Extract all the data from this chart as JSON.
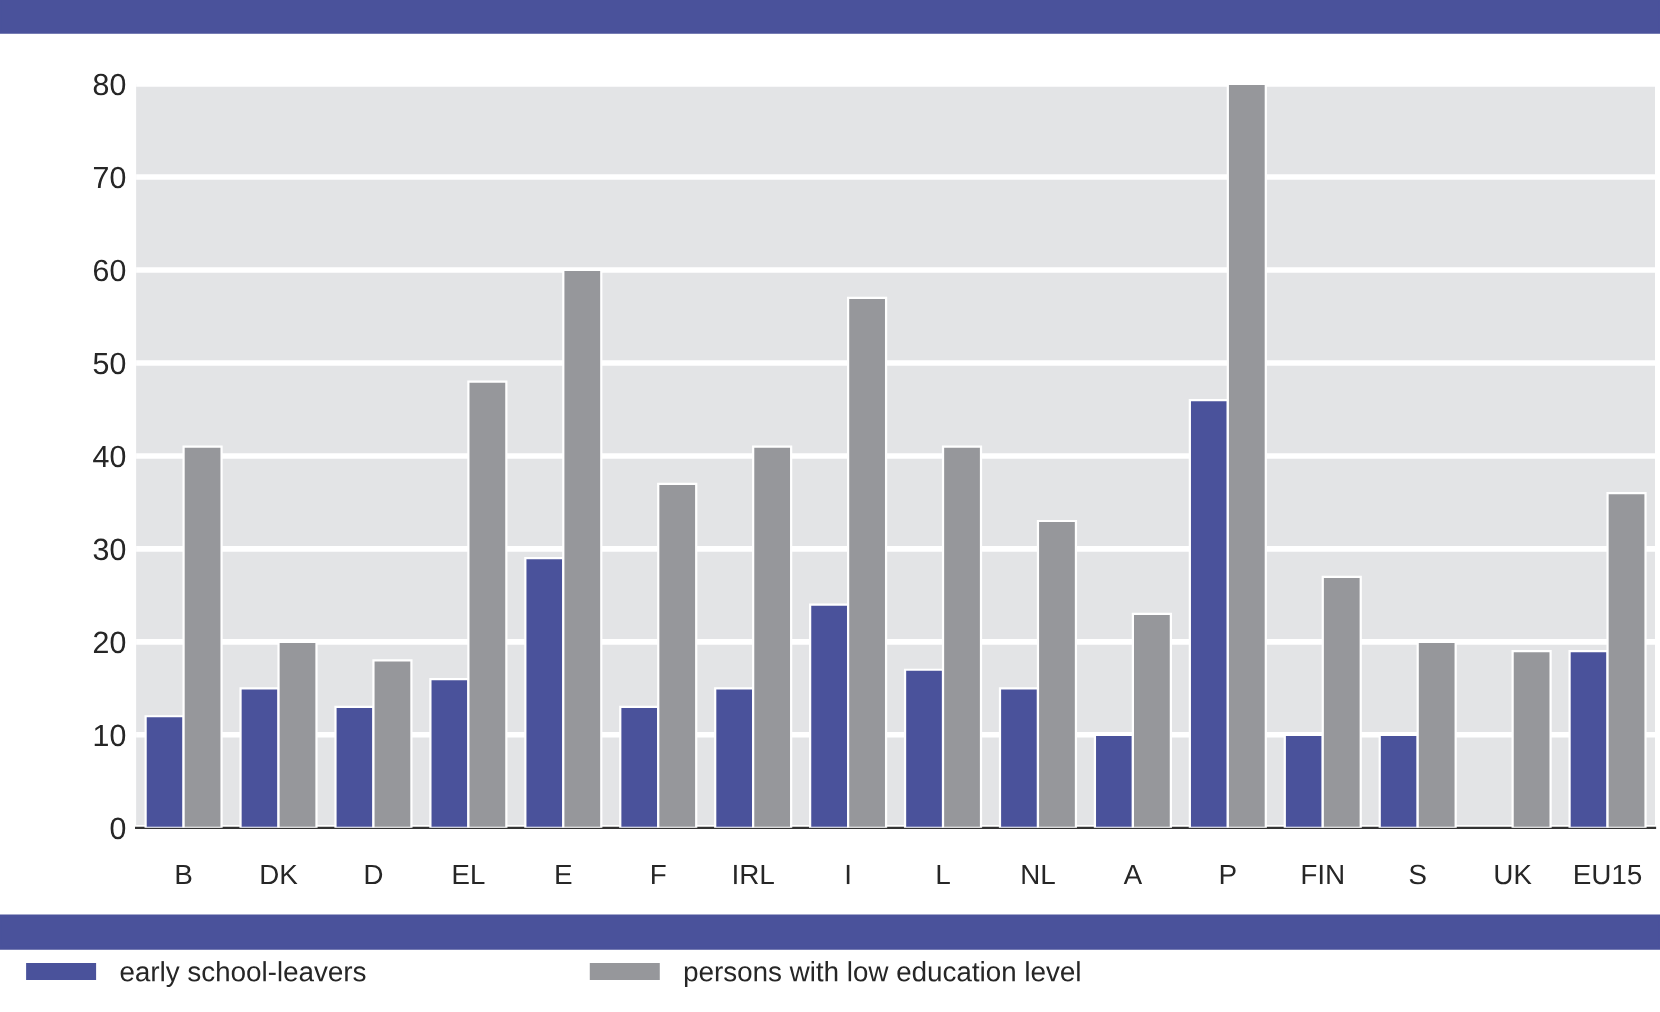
{
  "chart_data": {
    "type": "bar",
    "categories": [
      "B",
      "DK",
      "D",
      "EL",
      "E",
      "F",
      "IRL",
      "I",
      "L",
      "NL",
      "A",
      "P",
      "FIN",
      "S",
      "UK",
      "EU15"
    ],
    "series": [
      {
        "name": "early school-leavers",
        "color": "#4a529b",
        "values": [
          12,
          15,
          13,
          16,
          29,
          13,
          15,
          24,
          17,
          15,
          10,
          46,
          10,
          10,
          null,
          19
        ]
      },
      {
        "name": "persons with low education level",
        "color": "#96979b",
        "values": [
          41,
          20,
          18,
          48,
          60,
          37,
          41,
          57,
          41,
          33,
          23,
          80,
          27,
          20,
          19,
          36
        ]
      }
    ],
    "ylim": [
      0,
      80
    ],
    "yticks": [
      0,
      10,
      20,
      30,
      40,
      50,
      60,
      70,
      80
    ],
    "grid": "y",
    "legend": "bottom"
  }
}
